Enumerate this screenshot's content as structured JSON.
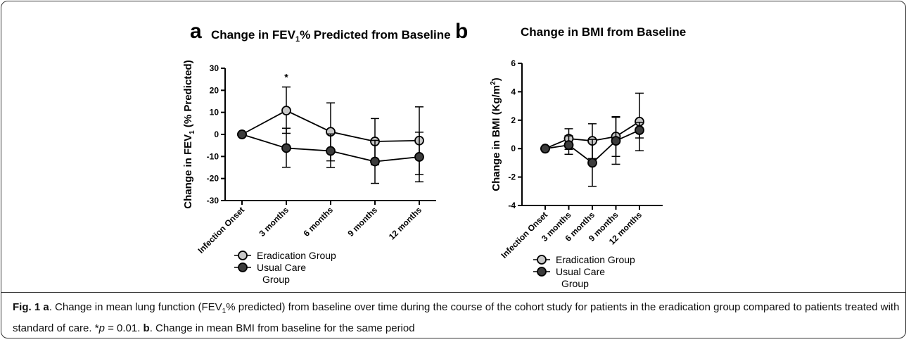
{
  "chart_data": [
    {
      "type": "line",
      "panel_letter": "a",
      "title_main": "Change in FEV",
      "title_sub": "1",
      "title_rest": "% Predicted from Baseline",
      "ylabel_main": "Change in FEV",
      "ylabel_sub": "1",
      "ylabel_rest": " (% Predicted)",
      "categories": [
        "Infection Onset",
        "3 months",
        "6 months",
        "9 months",
        "12 months"
      ],
      "ylim": [
        -30,
        30
      ],
      "yticks": [
        "-30",
        "-20",
        "-10",
        "0",
        "10",
        "20",
        "30"
      ],
      "series": [
        {
          "name": "Eradication Group",
          "color": "#c8c8c8",
          "values": [
            0,
            10.8,
            1.2,
            -3.2,
            -2.8
          ],
          "err_low": [
            0,
            0.5,
            -12,
            -13.8,
            -18.2
          ],
          "err_high": [
            0,
            21.5,
            14.3,
            7.2,
            12.5
          ]
        },
        {
          "name": "Usual Care Group",
          "color": "#3c3c3c",
          "values": [
            0,
            -6.2,
            -7.5,
            -12.3,
            -10.2
          ],
          "err_low": [
            0,
            -14.9,
            -15,
            -22.2,
            -21.5
          ],
          "err_high": [
            0,
            2.8,
            0.2,
            -2.7,
            1
          ]
        }
      ],
      "annotation": {
        "text": "*",
        "category_index": 1,
        "y": 26
      },
      "legend": [
        "Eradication Group",
        "Usual Care",
        "Group"
      ]
    },
    {
      "type": "line",
      "panel_letter": "b",
      "title": "Change in BMI from Baseline",
      "ylabel_main": "Change in BMI (Kg/m",
      "ylabel_sup": "2",
      "ylabel_rest": ")",
      "categories": [
        "Infection Onset",
        "3 months",
        "6 months",
        "9 months",
        "12 months"
      ],
      "ylim": [
        -4,
        6
      ],
      "yticks": [
        "-4",
        "-2",
        "0",
        "2",
        "4",
        "6"
      ],
      "series": [
        {
          "name": "Eradication Group",
          "color": "#c8c8c8",
          "values": [
            0,
            0.7,
            0.55,
            0.85,
            1.9
          ],
          "err_low": [
            0,
            -0.05,
            -0.7,
            -0.55,
            -0.15
          ],
          "err_high": [
            0,
            1.4,
            1.75,
            2.25,
            3.9
          ]
        },
        {
          "name": "Usual Care Group",
          "color": "#3c3c3c",
          "values": [
            0,
            0.25,
            -1,
            0.55,
            1.3
          ],
          "err_low": [
            0,
            -0.4,
            -2.65,
            -1.1,
            0.75
          ],
          "err_high": [
            0,
            0.9,
            0.65,
            2.2,
            1.85
          ]
        }
      ],
      "legend": [
        "Eradication Group",
        "Usual Care",
        "Group"
      ]
    }
  ],
  "caption": {
    "fig_label": "Fig. 1",
    "a_letter": "a",
    "a_text": ". Change in mean lung function (FEV",
    "a_sub": "1",
    "a_text2": "% predicted) from baseline over time during the course of the cohort study for patients in the eradication group compared to patients treated with standard of care. *",
    "p_sym": "p",
    "p_val": " = 0.01. ",
    "b_letter": "b",
    "b_text": ". Change in mean BMI from baseline for the same period"
  }
}
